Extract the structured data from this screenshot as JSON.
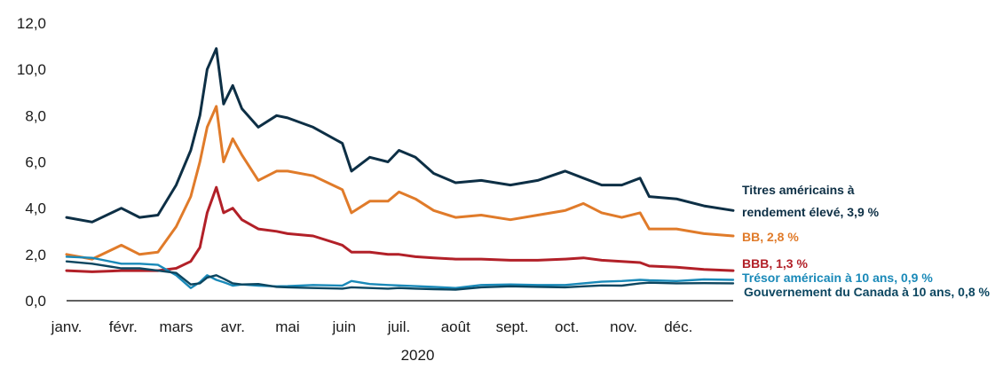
{
  "chart_data": {
    "type": "line",
    "title": "",
    "xlabel": "2020",
    "ylabel": "",
    "ylim": [
      0,
      12
    ],
    "yticks": [
      "0,0",
      "2,0",
      "4,0",
      "6,0",
      "8,0",
      "10,0",
      "12,0"
    ],
    "months": [
      "janv.",
      "févr.",
      "mars",
      "avr.",
      "mai",
      "juin",
      "juil.",
      "août",
      "sept.",
      "oct.",
      "nov.",
      "déc."
    ],
    "grid": false,
    "legend": "right, direct labels",
    "series": [
      {
        "name": "Titres américains à rendement élevé, 3,9 %",
        "label_lines": [
          "Titres américains à",
          "rendement élevé, 3,9 %"
        ],
        "color": "#0d2f45",
        "x": [
          "2020-01-01",
          "2020-01-15",
          "2020-01-31",
          "2020-02-10",
          "2020-02-20",
          "2020-03-01",
          "2020-03-09",
          "2020-03-14",
          "2020-03-18",
          "2020-03-23",
          "2020-03-27",
          "2020-04-01",
          "2020-04-06",
          "2020-04-15",
          "2020-04-25",
          "2020-05-01",
          "2020-05-15",
          "2020-05-31",
          "2020-06-05",
          "2020-06-15",
          "2020-06-25",
          "2020-07-01",
          "2020-07-10",
          "2020-07-20",
          "2020-08-01",
          "2020-08-15",
          "2020-08-31",
          "2020-09-15",
          "2020-09-30",
          "2020-10-10",
          "2020-10-20",
          "2020-10-31",
          "2020-11-10",
          "2020-11-15",
          "2020-11-30",
          "2020-12-15",
          "2020-12-31"
        ],
        "y": [
          3.6,
          3.4,
          4.0,
          3.6,
          3.7,
          5.0,
          6.5,
          8.0,
          10.0,
          10.9,
          8.5,
          9.3,
          8.3,
          7.5,
          8.0,
          7.9,
          7.5,
          6.8,
          5.6,
          6.2,
          6.0,
          6.5,
          6.2,
          5.5,
          5.1,
          5.2,
          5.0,
          5.2,
          5.6,
          5.3,
          5.0,
          5.0,
          5.3,
          4.5,
          4.4,
          4.1,
          3.9
        ]
      },
      {
        "name": "BB, 2,8 %",
        "label_lines": [
          "BB, 2,8 %"
        ],
        "color": "#e07b2a",
        "x": [
          "2020-01-01",
          "2020-01-15",
          "2020-01-31",
          "2020-02-10",
          "2020-02-20",
          "2020-03-01",
          "2020-03-09",
          "2020-03-14",
          "2020-03-18",
          "2020-03-23",
          "2020-03-27",
          "2020-04-01",
          "2020-04-06",
          "2020-04-15",
          "2020-04-25",
          "2020-05-01",
          "2020-05-15",
          "2020-05-31",
          "2020-06-05",
          "2020-06-15",
          "2020-06-25",
          "2020-07-01",
          "2020-07-10",
          "2020-07-20",
          "2020-08-01",
          "2020-08-15",
          "2020-08-31",
          "2020-09-15",
          "2020-09-30",
          "2020-10-10",
          "2020-10-20",
          "2020-10-31",
          "2020-11-10",
          "2020-11-15",
          "2020-11-30",
          "2020-12-15",
          "2020-12-31"
        ],
        "y": [
          2.0,
          1.8,
          2.4,
          2.0,
          2.1,
          3.2,
          4.5,
          6.0,
          7.5,
          8.4,
          6.0,
          7.0,
          6.3,
          5.2,
          5.6,
          5.6,
          5.4,
          4.8,
          3.8,
          4.3,
          4.3,
          4.7,
          4.4,
          3.9,
          3.6,
          3.7,
          3.5,
          3.7,
          3.9,
          4.2,
          3.8,
          3.6,
          3.8,
          3.1,
          3.1,
          2.9,
          2.8
        ]
      },
      {
        "name": "BBB, 1,3 %",
        "label_lines": [
          "BBB, 1,3 %"
        ],
        "color": "#b22028",
        "x": [
          "2020-01-01",
          "2020-01-15",
          "2020-01-31",
          "2020-02-10",
          "2020-02-20",
          "2020-03-01",
          "2020-03-09",
          "2020-03-14",
          "2020-03-18",
          "2020-03-23",
          "2020-03-27",
          "2020-04-01",
          "2020-04-06",
          "2020-04-15",
          "2020-04-25",
          "2020-05-01",
          "2020-05-15",
          "2020-05-31",
          "2020-06-05",
          "2020-06-15",
          "2020-06-25",
          "2020-07-01",
          "2020-07-10",
          "2020-07-20",
          "2020-08-01",
          "2020-08-15",
          "2020-08-31",
          "2020-09-15",
          "2020-09-30",
          "2020-10-10",
          "2020-10-20",
          "2020-10-31",
          "2020-11-10",
          "2020-11-15",
          "2020-11-30",
          "2020-12-15",
          "2020-12-31"
        ],
        "y": [
          1.3,
          1.25,
          1.3,
          1.3,
          1.3,
          1.4,
          1.7,
          2.3,
          3.8,
          4.9,
          3.8,
          4.0,
          3.5,
          3.1,
          3.0,
          2.9,
          2.8,
          2.4,
          2.1,
          2.1,
          2.0,
          2.0,
          1.9,
          1.85,
          1.8,
          1.8,
          1.75,
          1.75,
          1.8,
          1.85,
          1.75,
          1.7,
          1.65,
          1.5,
          1.45,
          1.35,
          1.3
        ]
      },
      {
        "name": "Trésor américain à 10 ans, 0,9 %",
        "label_lines": [
          "Trésor américain à 10 ans, 0,9 %"
        ],
        "color": "#1989b8",
        "x": [
          "2020-01-01",
          "2020-01-15",
          "2020-01-31",
          "2020-02-10",
          "2020-02-20",
          "2020-03-01",
          "2020-03-09",
          "2020-03-14",
          "2020-03-18",
          "2020-03-23",
          "2020-03-27",
          "2020-04-01",
          "2020-04-06",
          "2020-04-15",
          "2020-04-25",
          "2020-05-01",
          "2020-05-15",
          "2020-05-31",
          "2020-06-05",
          "2020-06-15",
          "2020-06-25",
          "2020-07-01",
          "2020-07-10",
          "2020-07-20",
          "2020-08-01",
          "2020-08-15",
          "2020-08-31",
          "2020-09-15",
          "2020-09-30",
          "2020-10-10",
          "2020-10-20",
          "2020-10-31",
          "2020-11-10",
          "2020-11-15",
          "2020-11-30",
          "2020-12-15",
          "2020-12-31"
        ],
        "y": [
          1.9,
          1.85,
          1.6,
          1.6,
          1.55,
          1.1,
          0.55,
          0.8,
          1.1,
          0.9,
          0.8,
          0.65,
          0.7,
          0.65,
          0.62,
          0.63,
          0.68,
          0.65,
          0.85,
          0.72,
          0.68,
          0.66,
          0.63,
          0.6,
          0.55,
          0.68,
          0.7,
          0.68,
          0.68,
          0.75,
          0.82,
          0.85,
          0.9,
          0.88,
          0.85,
          0.92,
          0.9
        ]
      },
      {
        "name": "Gouvernement du Canada à 10 ans, 0,8 %",
        "label_lines": [
          "Gouvernement du Canada à 10 ans, 0,8 %"
        ],
        "color": "#0c4660",
        "x": [
          "2020-01-01",
          "2020-01-15",
          "2020-01-31",
          "2020-02-10",
          "2020-02-20",
          "2020-03-01",
          "2020-03-09",
          "2020-03-14",
          "2020-03-18",
          "2020-03-23",
          "2020-03-27",
          "2020-04-01",
          "2020-04-06",
          "2020-04-15",
          "2020-04-25",
          "2020-05-01",
          "2020-05-15",
          "2020-05-31",
          "2020-06-05",
          "2020-06-15",
          "2020-06-25",
          "2020-07-01",
          "2020-07-10",
          "2020-07-20",
          "2020-08-01",
          "2020-08-15",
          "2020-08-31",
          "2020-09-15",
          "2020-09-30",
          "2020-10-10",
          "2020-10-20",
          "2020-10-31",
          "2020-11-10",
          "2020-11-15",
          "2020-11-30",
          "2020-12-15",
          "2020-12-31"
        ],
        "y": [
          1.7,
          1.6,
          1.4,
          1.4,
          1.3,
          1.2,
          0.7,
          0.75,
          1.0,
          1.1,
          0.95,
          0.75,
          0.7,
          0.72,
          0.6,
          0.58,
          0.55,
          0.52,
          0.58,
          0.55,
          0.52,
          0.55,
          0.52,
          0.5,
          0.48,
          0.58,
          0.62,
          0.6,
          0.58,
          0.62,
          0.66,
          0.65,
          0.75,
          0.78,
          0.75,
          0.76,
          0.75
        ]
      }
    ]
  }
}
